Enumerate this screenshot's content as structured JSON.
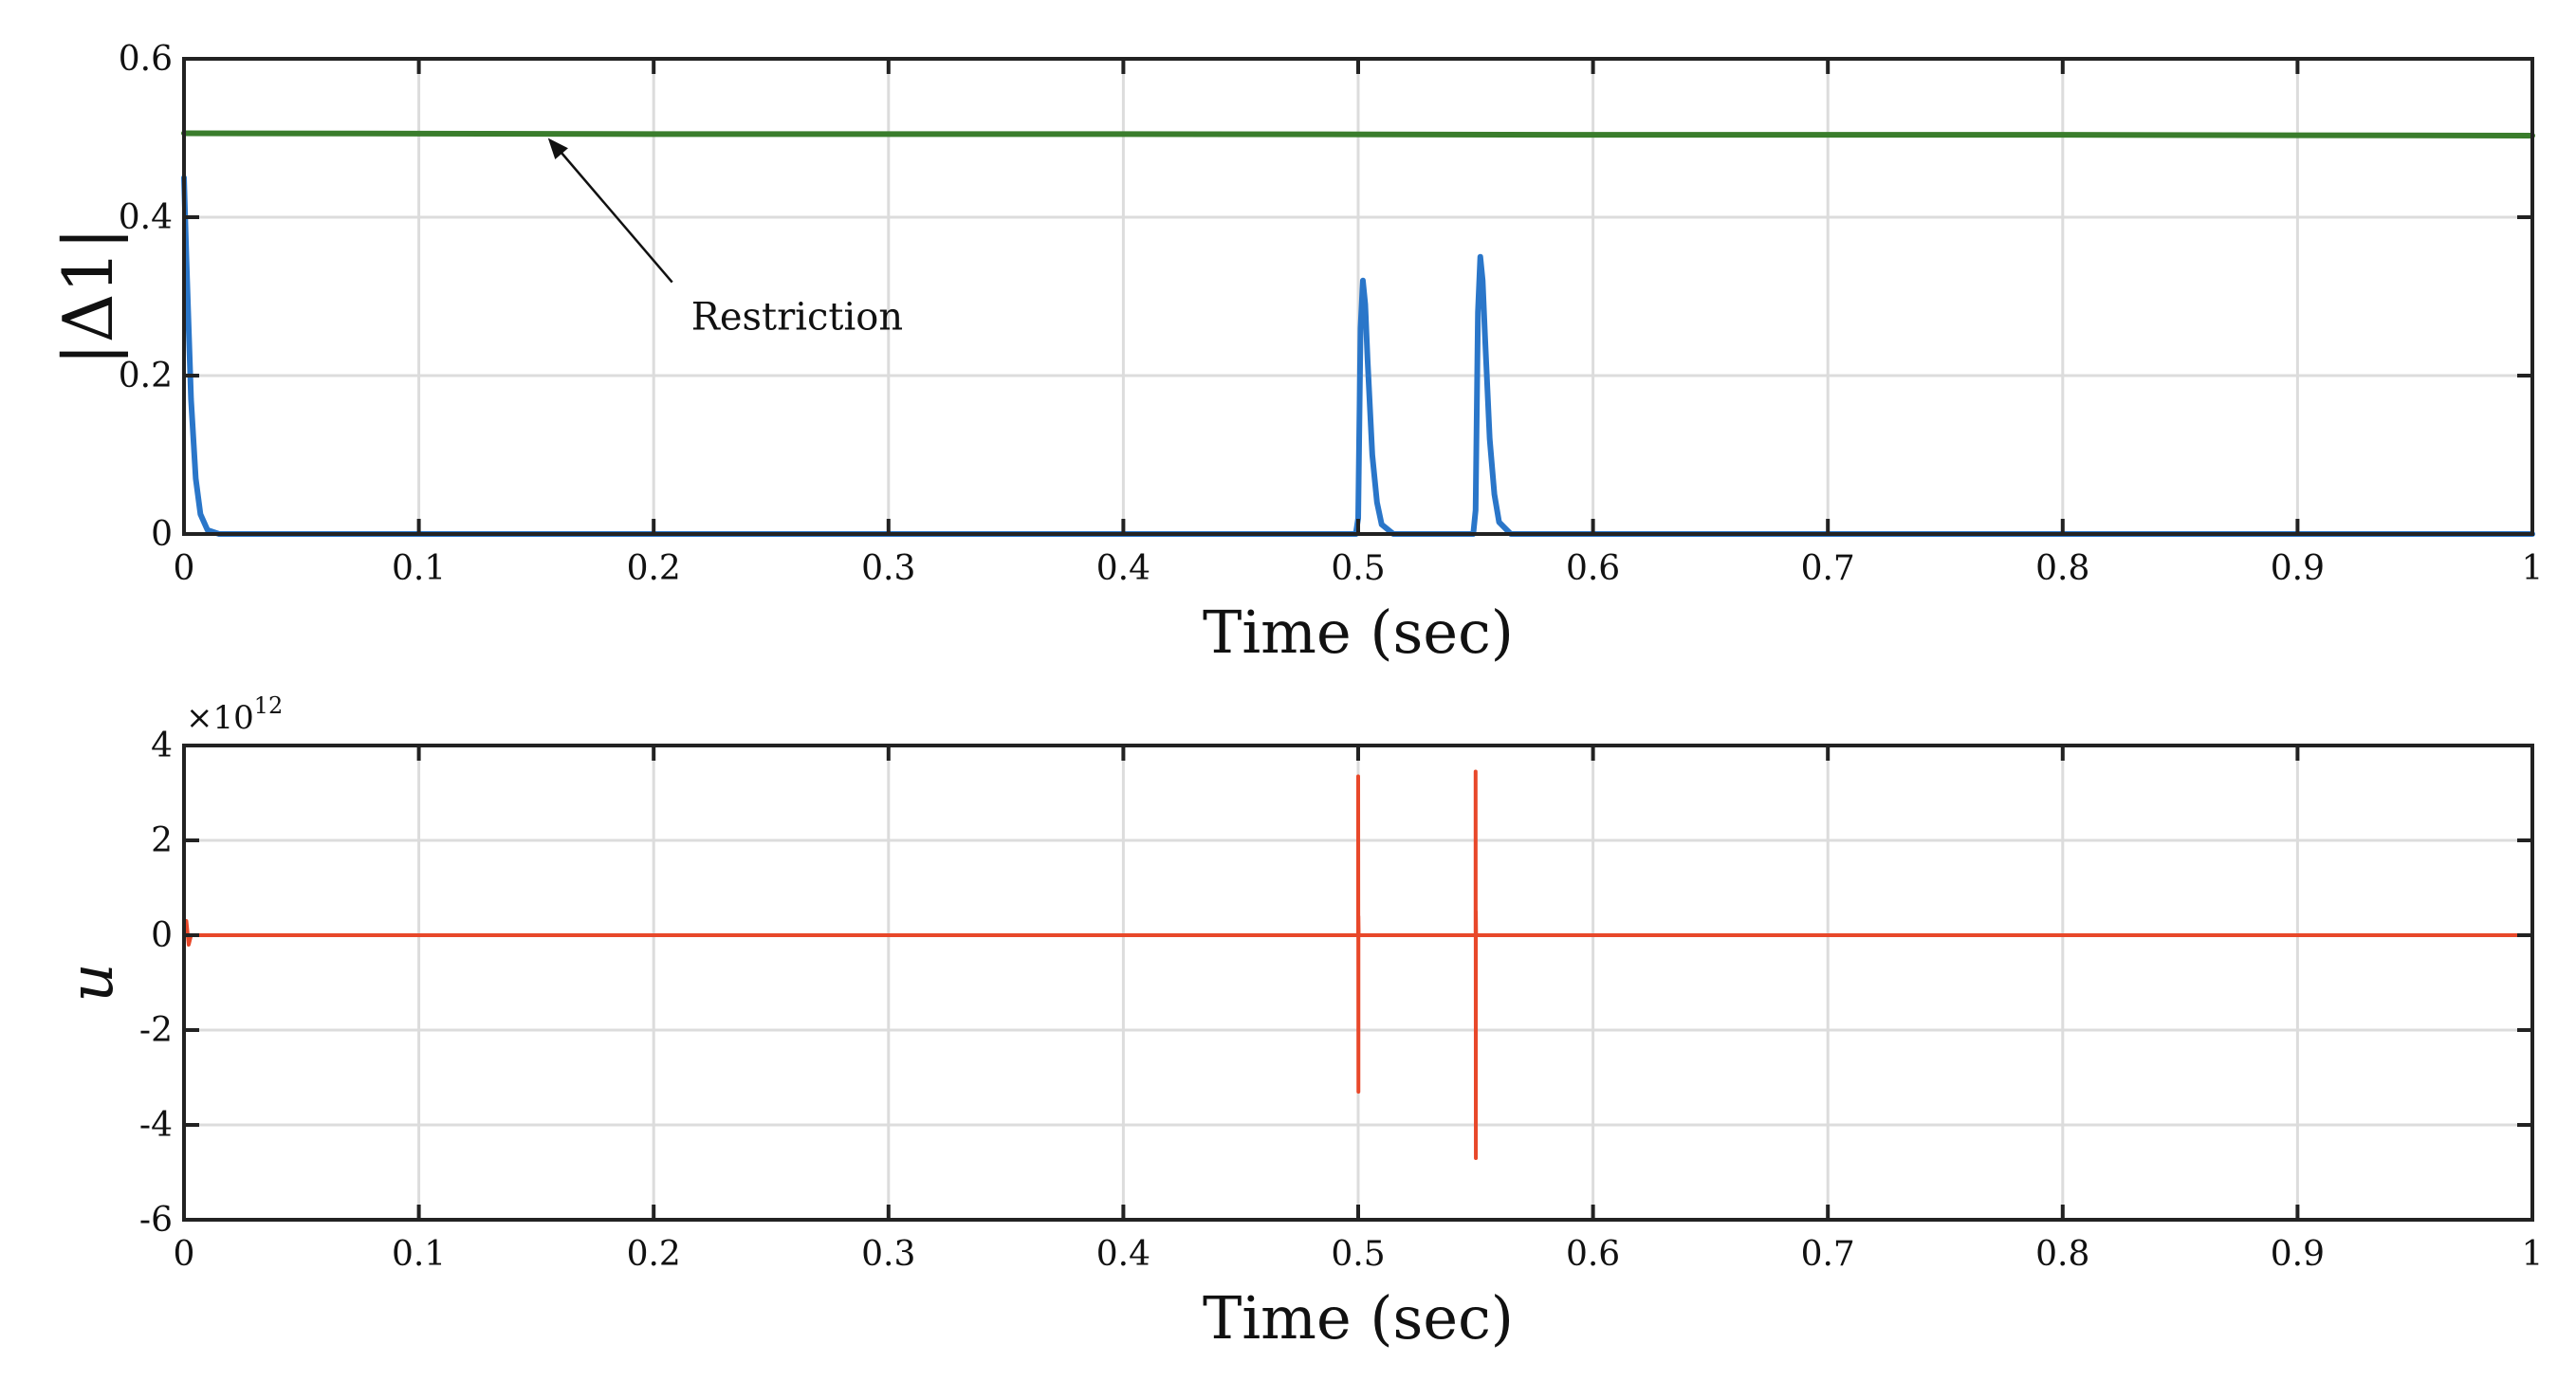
{
  "chart_data": [
    {
      "type": "line",
      "xlabel": "Time (sec)",
      "ylabel": "|Δ1|",
      "xlim": [
        0,
        1
      ],
      "ylim": [
        0,
        0.6
      ],
      "grid": true,
      "x_ticks": [
        0,
        0.1,
        0.2,
        0.3,
        0.4,
        0.5,
        0.6,
        0.7,
        0.8,
        0.9,
        1
      ],
      "x_tick_labels": [
        "0",
        "0.1",
        "0.2",
        "0.3",
        "0.4",
        "0.5",
        "0.6",
        "0.7",
        "0.8",
        "0.9",
        "1"
      ],
      "y_ticks": [
        0,
        0.2,
        0.4,
        0.6
      ],
      "y_tick_labels": [
        "0",
        "0.2",
        "0.4",
        "0.6"
      ],
      "annotation": {
        "text": "Restriction",
        "target_x": 0.155,
        "target_y": 0.5,
        "text_x": 0.22,
        "text_y": 0.27
      },
      "series": [
        {
          "name": "Restriction",
          "color": "#3a7d2c",
          "x": [
            0,
            0.2,
            0.4,
            0.6,
            0.8,
            1.0
          ],
          "y": [
            0.506,
            0.505,
            0.505,
            0.504,
            0.504,
            0.503
          ]
        },
        {
          "name": "|Δ1|",
          "color": "#2a76c9",
          "x": [
            0,
            0.001,
            0.003,
            0.005,
            0.007,
            0.01,
            0.015,
            0.499,
            0.5,
            0.501,
            0.502,
            0.503,
            0.504,
            0.506,
            0.508,
            0.51,
            0.515,
            0.549,
            0.55,
            0.551,
            0.552,
            0.553,
            0.554,
            0.556,
            0.558,
            0.56,
            0.565,
            1.0
          ],
          "y": [
            0.45,
            0.35,
            0.17,
            0.07,
            0.025,
            0.005,
            0,
            0,
            0.02,
            0.26,
            0.32,
            0.29,
            0.22,
            0.1,
            0.04,
            0.012,
            0,
            0,
            0.03,
            0.28,
            0.35,
            0.32,
            0.25,
            0.12,
            0.05,
            0.015,
            0,
            0
          ]
        }
      ]
    },
    {
      "type": "line",
      "xlabel": "Time (sec)",
      "ylabel": "u",
      "xlim": [
        0,
        1
      ],
      "ylim": [
        -6,
        4
      ],
      "y_scale_exponent": {
        "base": "×10",
        "exponent": "12"
      },
      "grid": true,
      "x_ticks": [
        0,
        0.1,
        0.2,
        0.3,
        0.4,
        0.5,
        0.6,
        0.7,
        0.8,
        0.9,
        1
      ],
      "x_tick_labels": [
        "0",
        "0.1",
        "0.2",
        "0.3",
        "0.4",
        "0.5",
        "0.6",
        "0.7",
        "0.8",
        "0.9",
        "1"
      ],
      "y_ticks": [
        -6,
        -4,
        -2,
        0,
        2,
        4
      ],
      "y_tick_labels": [
        "-6",
        "-4",
        "-2",
        "0",
        "2",
        "4"
      ],
      "series": [
        {
          "name": "u",
          "color": "#e8482a",
          "x": [
            0,
            0.001,
            0.002,
            0.003,
            0.5,
            0.5,
            0.5001,
            0.5001,
            0.5002,
            0.55,
            0.55,
            0.5501,
            0.5501,
            0.5502,
            0.999,
            1.0
          ],
          "y": [
            0,
            0.3,
            -0.2,
            0,
            0,
            3.35,
            -3.3,
            0.4,
            0,
            0,
            3.45,
            -4.7,
            0.5,
            0,
            0,
            0
          ]
        }
      ]
    }
  ]
}
